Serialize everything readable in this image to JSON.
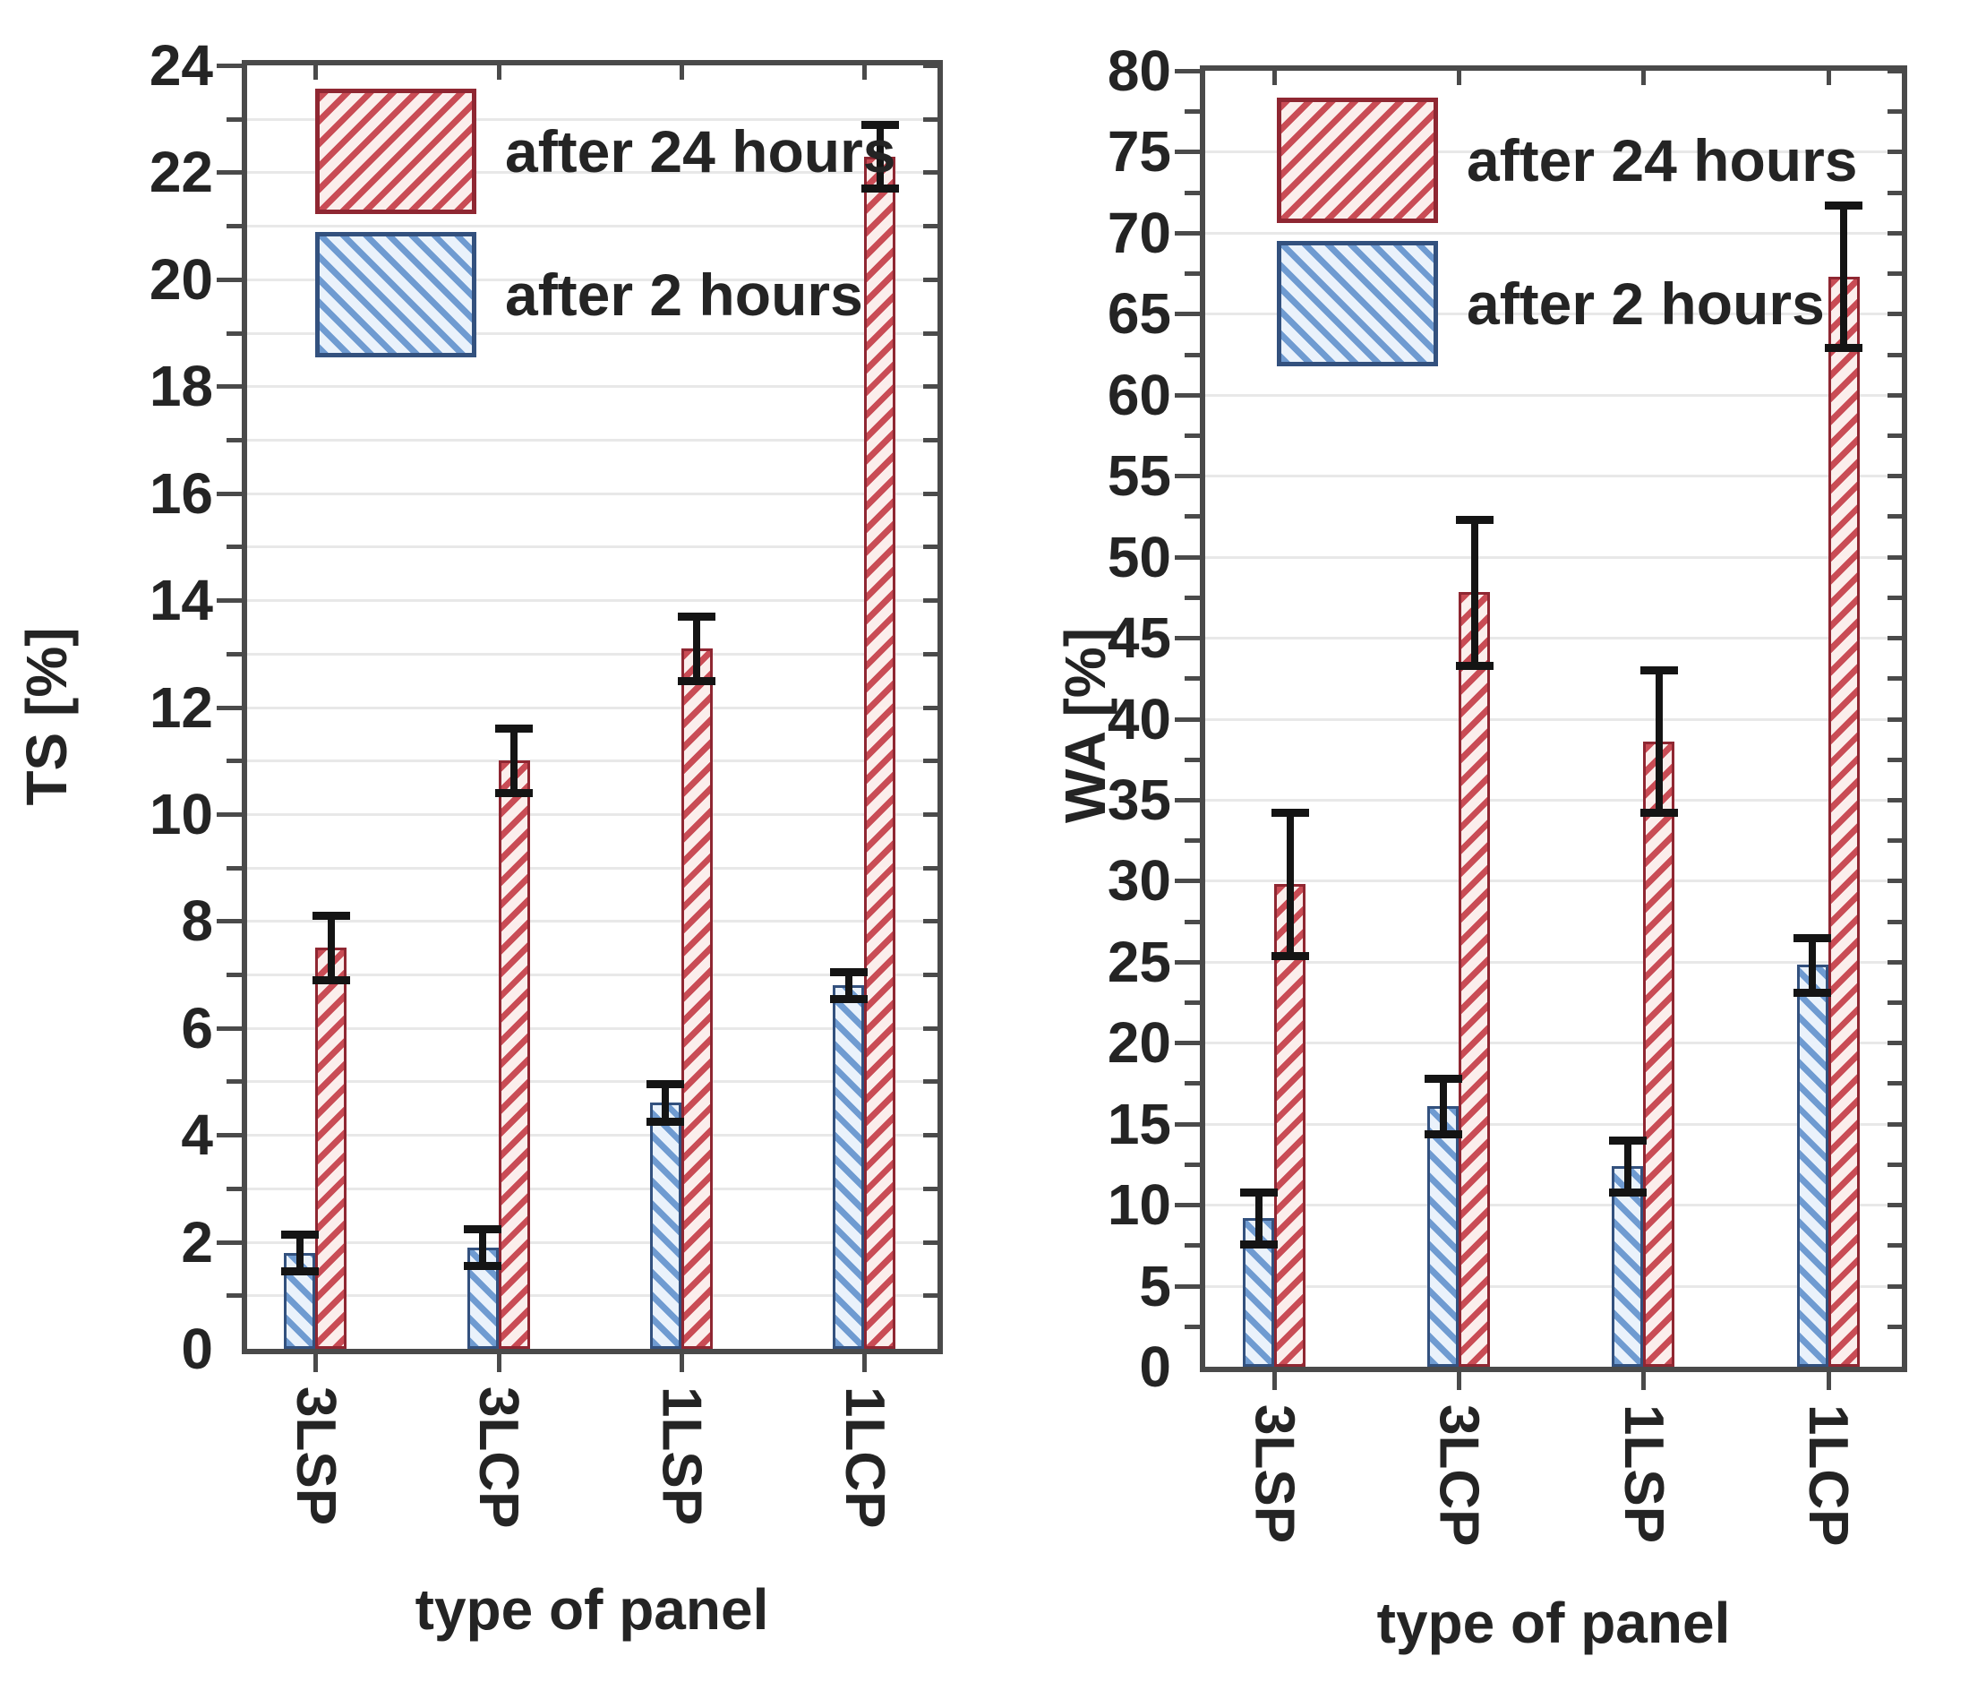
{
  "page": {
    "background": "#ffffff"
  },
  "chart_data": [
    {
      "type": "bar",
      "title": "",
      "xlabel": "type of panel",
      "ylabel": "TS [%]",
      "categories": [
        "3LSP",
        "3LCP",
        "1LSP",
        "1LCP"
      ],
      "ylim": [
        0,
        24
      ],
      "ytick_label_step": 2,
      "ytick_minor_step": 1,
      "grid_step": 1,
      "grid": true,
      "legend_position": "top-left",
      "error_bar_color": "#141414",
      "series": [
        {
          "name": "after 24 hours",
          "hatch": "/",
          "values": [
            7.5,
            11.0,
            13.1,
            22.3
          ],
          "errors": [
            0.6,
            0.6,
            0.6,
            0.6
          ],
          "stripe_color": "#c94c55",
          "fill_color": "#fbeeec",
          "border_color": "#8f2732"
        },
        {
          "name": "after 2 hours",
          "hatch": "\\",
          "values": [
            1.8,
            1.9,
            4.6,
            6.8
          ],
          "errors": [
            0.35,
            0.35,
            0.35,
            0.25
          ],
          "stripe_color": "#6f9bd1",
          "fill_color": "#eaf2fb",
          "border_color": "#33517e"
        }
      ]
    },
    {
      "type": "bar",
      "title": "",
      "xlabel": "type of panel",
      "ylabel": "WA [%]",
      "categories": [
        "3LSP",
        "3LCP",
        "1LSP",
        "1LCP"
      ],
      "ylim": [
        0,
        80
      ],
      "ytick_label_step": 5,
      "ytick_minor_step": 2.5,
      "grid_step": 5,
      "grid": true,
      "legend_position": "top-left",
      "error_bar_color": "#141414",
      "series": [
        {
          "name": "after 24 hours",
          "hatch": "/",
          "values": [
            29.8,
            47.8,
            38.6,
            67.3
          ],
          "errors": [
            4.4,
            4.5,
            4.4,
            4.4
          ],
          "stripe_color": "#c94c55",
          "fill_color": "#fbeeec",
          "border_color": "#8f2732"
        },
        {
          "name": "after 2 hours",
          "hatch": "\\",
          "values": [
            9.2,
            16.1,
            12.4,
            24.8
          ],
          "errors": [
            1.6,
            1.7,
            1.6,
            1.7
          ],
          "stripe_color": "#6f9bd1",
          "fill_color": "#eaf2fb",
          "border_color": "#33517e"
        }
      ]
    }
  ]
}
